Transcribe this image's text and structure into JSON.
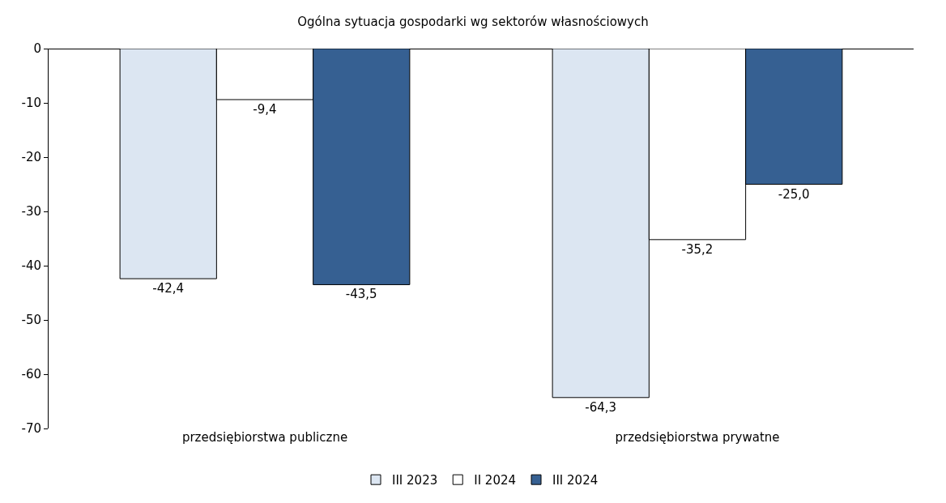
{
  "chart_data": {
    "type": "bar",
    "title": "Ogólna sytuacja gospodarki wg sektorów własnościowych",
    "categories": [
      "przedsiębiorstwa publiczne",
      "przedsiębiorstwa prywatne"
    ],
    "series": [
      {
        "name": "III 2023",
        "color": "#dce6f2",
        "values": [
          -42.4,
          -64.3
        ],
        "value_labels": [
          "-42,4",
          "-64,3"
        ]
      },
      {
        "name": "II 2024",
        "color": "#ffffff",
        "values": [
          -9.4,
          -35.2
        ],
        "value_labels": [
          "-9,4",
          "-35,2"
        ]
      },
      {
        "name": "III 2024",
        "color": "#366092",
        "values": [
          -43.5,
          -25.0
        ],
        "value_labels": [
          "-43,5",
          "-25,0"
        ]
      }
    ],
    "ylim": [
      -70,
      0
    ],
    "yticks": [
      0,
      -10,
      -20,
      -30,
      -40,
      -50,
      -60,
      -70
    ],
    "legend": "bottom"
  }
}
